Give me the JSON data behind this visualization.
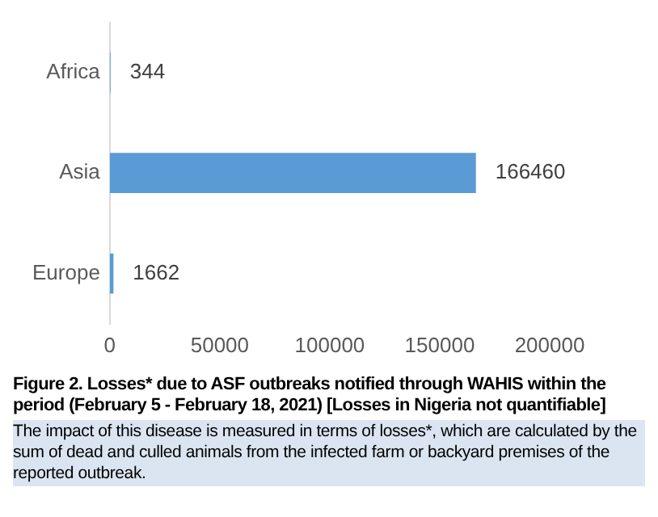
{
  "chart_data": {
    "type": "bar",
    "orientation": "horizontal",
    "title": "Figure 2. Losses* due to ASF outbreaks notified through WAHIS within the period (February 5 - February 18, 2021) [Losses in Nigeria not quantifiable]",
    "annotations": [
      "The impact of this disease is measured in terms of losses*, which are calculated by the sum of dead and culled animals from the infected farm or backyard premises of the reported outbreak."
    ],
    "categories": [
      "Africa",
      "Asia",
      "Europe"
    ],
    "values": [
      344,
      166460,
      1662
    ],
    "color": "#5b9bd5",
    "xlim": [
      0,
      200000
    ],
    "xticks": [
      0,
      50000,
      100000,
      150000,
      200000
    ],
    "data_labels": true,
    "grid": false,
    "legend": false
  }
}
